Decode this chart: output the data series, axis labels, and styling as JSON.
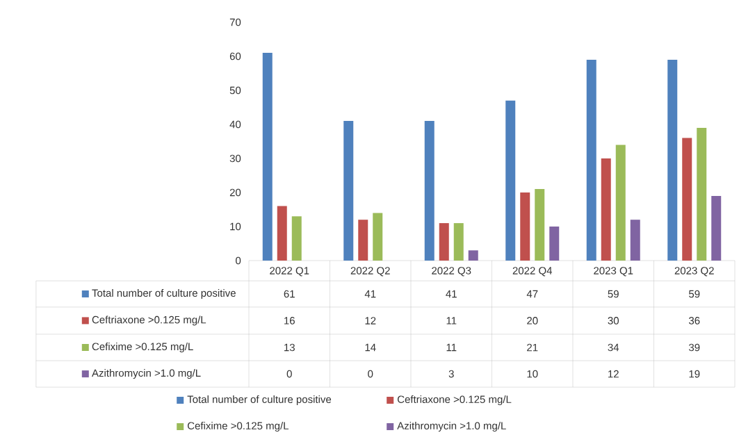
{
  "chart_data": {
    "type": "bar",
    "categories": [
      "2022 Q1",
      "2022 Q2",
      "2022 Q3",
      "2022 Q4",
      "2023 Q1",
      "2023 Q2"
    ],
    "series": [
      {
        "name": "Total number of culture positive",
        "color": "#4f81bd",
        "values": [
          61,
          41,
          41,
          47,
          59,
          59
        ]
      },
      {
        "name": "Ceftriaxone >0.125 mg/L",
        "color": "#c0504d",
        "values": [
          16,
          12,
          11,
          20,
          30,
          36
        ]
      },
      {
        "name": "Cefixime >0.125 mg/L",
        "color": "#9bbb59",
        "values": [
          13,
          14,
          11,
          21,
          34,
          39
        ]
      },
      {
        "name": "Azithromycin >1.0 mg/L",
        "color": "#8064a2",
        "values": [
          0,
          0,
          3,
          10,
          12,
          19
        ]
      }
    ],
    "ylim": [
      0,
      70
    ],
    "yticks": [
      0,
      10,
      20,
      30,
      40,
      50,
      60,
      70
    ],
    "data_labels": true,
    "legend": "bottom"
  }
}
